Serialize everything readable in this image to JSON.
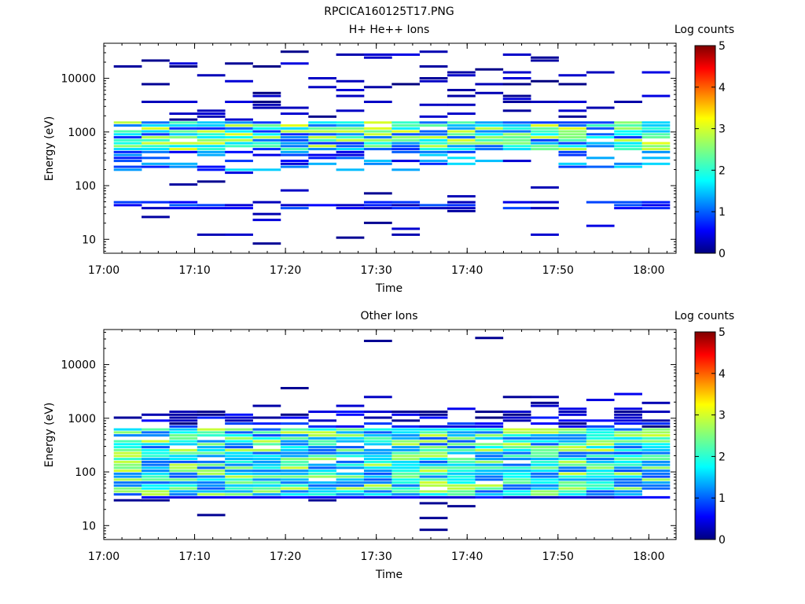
{
  "figure_title": "RPCICA160125T17.PNG",
  "chart_data": [
    {
      "type": "heatmap",
      "title": "H+ He++ Ions",
      "xlabel": "Time",
      "ylabel": "Energy (eV)",
      "x_ticks": [
        "17:00",
        "17:10",
        "17:20",
        "17:30",
        "17:40",
        "17:50",
        "18:00"
      ],
      "x_range": [
        "17:00",
        "18:03"
      ],
      "y_scale": "log",
      "y_ticks": [
        "10",
        "100",
        "1000",
        "10000"
      ],
      "y_range": [
        5.5,
        45000
      ],
      "colorbar_label": "Log counts",
      "colorbar_ticks": [
        "0",
        "1",
        "2",
        "3",
        "4",
        "5"
      ],
      "colorbar_range": [
        0,
        5
      ],
      "colormap": [
        "#00007f",
        "#0000ff",
        "#007fff",
        "#00ffff",
        "#7fff7f",
        "#ffff00",
        "#ff7f00",
        "#ff0000",
        "#7f0000"
      ]
    },
    {
      "type": "heatmap",
      "title": "Other Ions",
      "xlabel": "Time",
      "ylabel": "Energy (eV)",
      "x_ticks": [
        "17:00",
        "17:10",
        "17:20",
        "17:30",
        "17:40",
        "17:50",
        "18:00"
      ],
      "x_range": [
        "17:00",
        "18:03"
      ],
      "y_scale": "log",
      "y_ticks": [
        "10",
        "100",
        "1000",
        "10000"
      ],
      "y_range": [
        5.5,
        45000
      ],
      "colorbar_label": "Log counts",
      "colorbar_ticks": [
        "0",
        "1",
        "2",
        "3",
        "4",
        "5"
      ],
      "colorbar_range": [
        0,
        5
      ],
      "colormap": [
        "#00007f",
        "#0000ff",
        "#007fff",
        "#00ffff",
        "#7fff7f",
        "#ffff00",
        "#ff7f00",
        "#ff0000",
        "#7f0000"
      ]
    }
  ]
}
